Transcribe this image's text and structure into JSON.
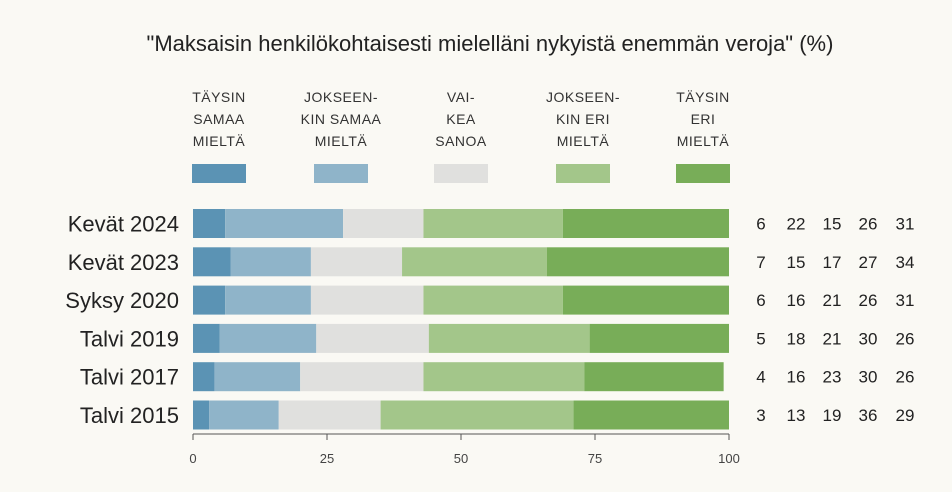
{
  "chart_data": {
    "type": "bar",
    "stacked": true,
    "orientation": "horizontal",
    "title": "\"Maksaisin henkilökohtaisesti mielelläni nykyistä enemmän veroja\" (%)",
    "categories": [
      "Kevät 2024",
      "Kevät 2023",
      "Syksy 2020",
      "Talvi 2019",
      "Talvi 2017",
      "Talvi 2015"
    ],
    "series": [
      {
        "name": "TÄYSIN SAMAA MIELTÄ",
        "legend_lines": [
          "TÄYSIN",
          "SAMAA",
          "MIELTÄ"
        ],
        "color": "#5b93b4",
        "values": [
          6,
          7,
          6,
          5,
          4,
          3
        ]
      },
      {
        "name": "JOKSEEN-KIN SAMAA MIELTÄ",
        "legend_lines": [
          "JOKSEEN-",
          "KIN SAMAA",
          "MIELTÄ"
        ],
        "color": "#8fb4c9",
        "values": [
          22,
          15,
          16,
          18,
          16,
          13
        ]
      },
      {
        "name": "VAI-KEA SANOA",
        "legend_lines": [
          "VAI-",
          "KEA",
          "SANOA"
        ],
        "color": "#e0e0de",
        "values": [
          15,
          17,
          21,
          21,
          23,
          19
        ]
      },
      {
        "name": "JOKSEEN-KIN ERI MIELTÄ",
        "legend_lines": [
          "JOKSEEN-",
          "KIN ERI",
          "MIELTÄ"
        ],
        "color": "#a3c68a",
        "values": [
          26,
          27,
          26,
          30,
          30,
          36
        ]
      },
      {
        "name": "TÄYSIN ERI MIELTÄ",
        "legend_lines": [
          "TÄYSIN",
          "ERI",
          "MIELTÄ"
        ],
        "color": "#78ad58",
        "values": [
          31,
          34,
          31,
          26,
          26,
          29
        ]
      }
    ],
    "xlim": [
      0,
      100
    ],
    "xticks": [
      0,
      25,
      50,
      75,
      100
    ],
    "xlabel": "",
    "ylabel": "",
    "legend": "top",
    "value_labels": "right"
  }
}
